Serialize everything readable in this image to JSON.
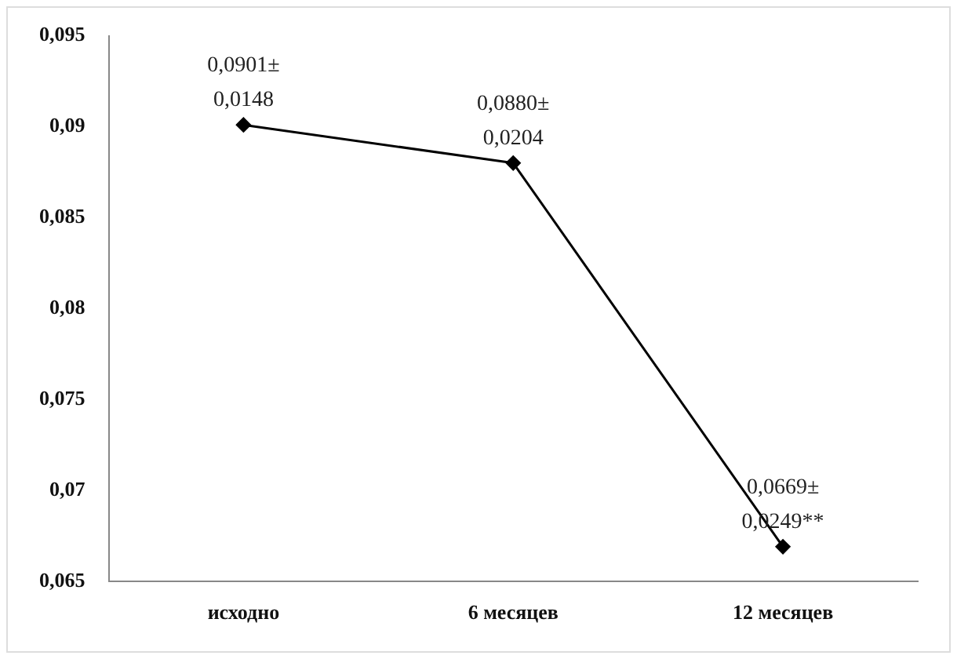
{
  "chart_data": {
    "type": "line",
    "categories": [
      "исходно",
      "6 месяцев",
      "12 месяцев"
    ],
    "series": [
      {
        "color": "#000000",
        "values": [
          0.0901,
          0.088,
          0.0669
        ],
        "value_labels": [
          "0,0901±\n0,0148",
          "0,0880±\n0,0204",
          "0,0669±\n0,0249**"
        ]
      }
    ],
    "ylim": [
      0.065,
      0.095
    ],
    "yticks": [
      {
        "value": 0.065,
        "label": "0,065"
      },
      {
        "value": 0.07,
        "label": "0,07"
      },
      {
        "value": 0.075,
        "label": "0,075"
      },
      {
        "value": 0.08,
        "label": "0,08"
      },
      {
        "value": 0.085,
        "label": "0,085"
      },
      {
        "value": 0.09,
        "label": "0,09"
      },
      {
        "value": 0.095,
        "label": "0,095"
      }
    ],
    "grid": false,
    "legend": false,
    "marker": "diamond",
    "line_style": "solid"
  }
}
